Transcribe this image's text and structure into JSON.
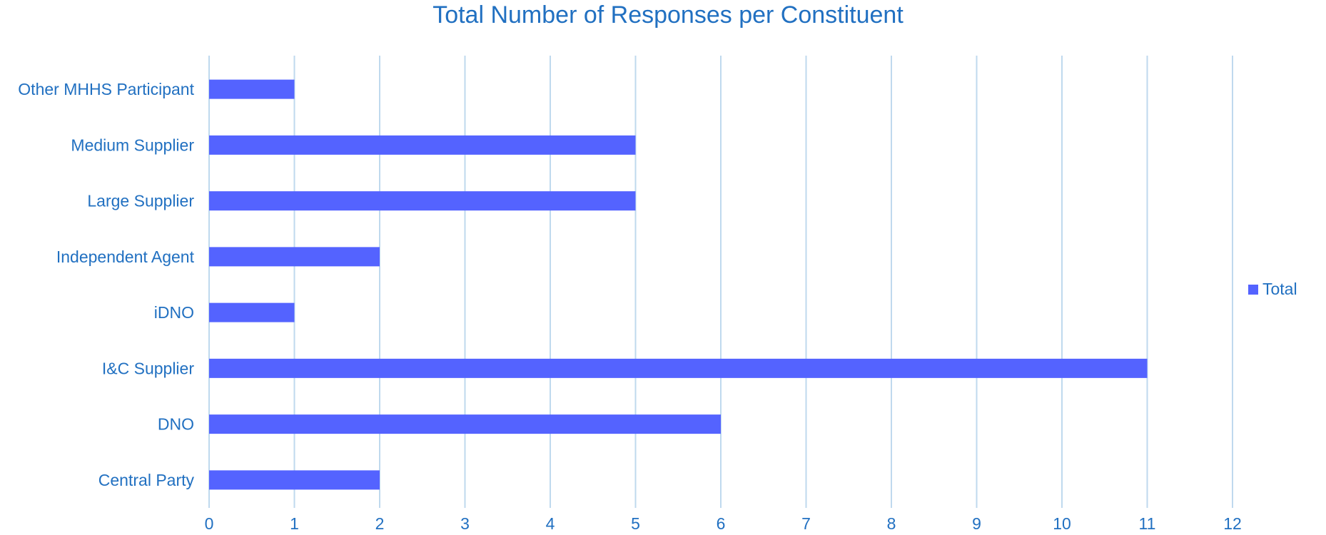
{
  "chart_data": {
    "type": "bar",
    "orientation": "horizontal",
    "title": "Total Number of Responses per Constituent",
    "categories": [
      "Central Party",
      "DNO",
      "I&C Supplier",
      "iDNO",
      "Independent Agent",
      "Large Supplier",
      "Medium Supplier ",
      "Other MHHS Participant"
    ],
    "series": [
      {
        "name": "Total",
        "values": [
          2,
          6,
          11,
          1,
          2,
          5,
          5,
          1
        ]
      }
    ],
    "xlim": [
      0,
      12
    ],
    "x_ticks": [
      0,
      1,
      2,
      3,
      4,
      5,
      6,
      7,
      8,
      9,
      10,
      11,
      12
    ],
    "grid": "vertical",
    "legend": "right",
    "colors": {
      "bar": "#5463FF",
      "text": "#2170C1",
      "grid": "#BFD9EE"
    }
  }
}
